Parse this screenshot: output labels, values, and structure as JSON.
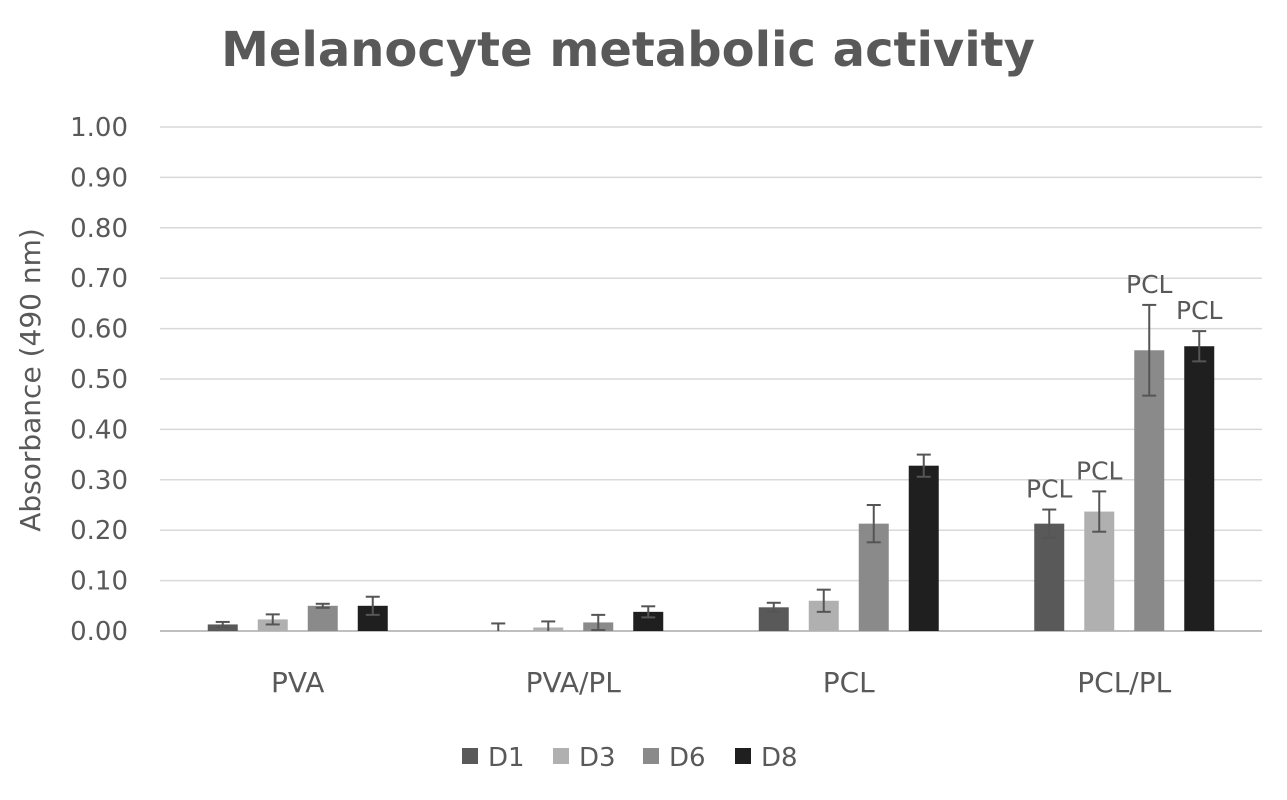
{
  "chart_data": {
    "type": "bar",
    "title": "Melanocyte metabolic activity",
    "ylabel": "Absorbance (490 nm)",
    "xlabel": "",
    "ylim": [
      0,
      1.0
    ],
    "yticks": [
      "0.00",
      "0.10",
      "0.20",
      "0.30",
      "0.40",
      "0.50",
      "0.60",
      "0.70",
      "0.80",
      "0.90",
      "1.00"
    ],
    "grid": true,
    "legend_position": "bottom",
    "categories": [
      "PVA",
      "PVA/PL",
      "PCL",
      "PCL/PL"
    ],
    "series": [
      {
        "name": "D1",
        "color": "#595959",
        "values": [
          0.013,
          0.0,
          0.047,
          0.213
        ],
        "errors": [
          0.005,
          0.015,
          0.009,
          0.028
        ]
      },
      {
        "name": "D3",
        "color": "#b0b0b0",
        "values": [
          0.023,
          0.007,
          0.06,
          0.237
        ],
        "errors": [
          0.01,
          0.012,
          0.022,
          0.04
        ]
      },
      {
        "name": "D6",
        "color": "#8a8a8a",
        "values": [
          0.05,
          0.017,
          0.213,
          0.557
        ],
        "errors": [
          0.004,
          0.015,
          0.037,
          0.09
        ]
      },
      {
        "name": "D8",
        "color": "#1f1f1f",
        "values": [
          0.05,
          0.038,
          0.328,
          0.565
        ],
        "errors": [
          0.018,
          0.011,
          0.022,
          0.03
        ]
      }
    ],
    "annotations": [
      {
        "category": "PCL/PL",
        "series": "D1",
        "text": "PCL"
      },
      {
        "category": "PCL/PL",
        "series": "D3",
        "text": "PCL"
      },
      {
        "category": "PCL/PL",
        "series": "D6",
        "text": "PCL"
      },
      {
        "category": "PCL/PL",
        "series": "D8",
        "text": "PCL"
      }
    ]
  }
}
